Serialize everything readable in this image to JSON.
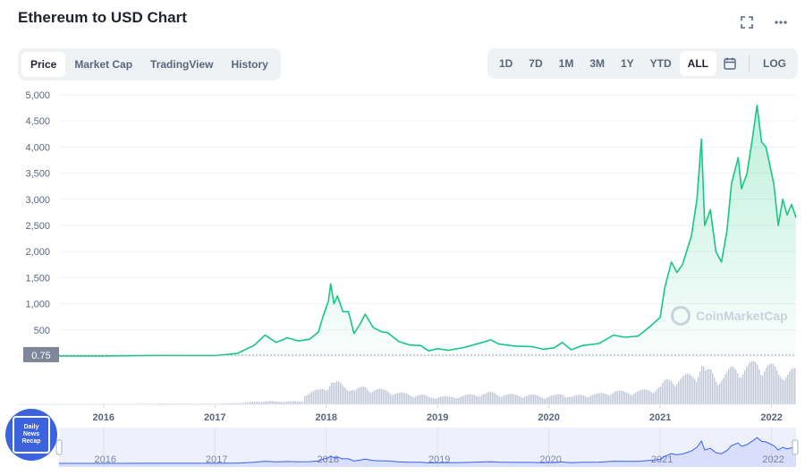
{
  "header": {
    "title": "Ethereum to USD Chart",
    "fullscreen_icon": "fullscreen-icon",
    "more_icon": "more-icon"
  },
  "tabs": [
    {
      "label": "Price",
      "active": true
    },
    {
      "label": "Market Cap",
      "active": false
    },
    {
      "label": "TradingView",
      "active": false
    },
    {
      "label": "History",
      "active": false
    }
  ],
  "ranges": [
    {
      "label": "1D",
      "active": false
    },
    {
      "label": "7D",
      "active": false
    },
    {
      "label": "1M",
      "active": false
    },
    {
      "label": "3M",
      "active": false
    },
    {
      "label": "1Y",
      "active": false
    },
    {
      "label": "YTD",
      "active": false
    },
    {
      "label": "ALL",
      "active": true
    }
  ],
  "calendar_icon": "calendar-icon",
  "log_label": "LOG",
  "watermark": "CoinMarketCap",
  "badge": {
    "lines": [
      "Daily",
      "News",
      "Recap"
    ]
  },
  "colors": {
    "line": "#16c784",
    "area_top": "#16c784",
    "volume": "#c4c9d4",
    "navigator_line": "#3861fb",
    "navigator_bg": "#eef0fb",
    "current_label_bg": "#7d8799"
  },
  "chart_data": {
    "type": "area",
    "title": "Ethereum to USD Chart",
    "ylim": [
      0,
      5000
    ],
    "y_ticks": [
      "5,000",
      "4,500",
      "4,000",
      "3,500",
      "3,000",
      "2,500",
      "2,000",
      "1,500",
      "1,000",
      "500"
    ],
    "x_ticks": [
      "2016",
      "2017",
      "2018",
      "2019",
      "2020",
      "2021",
      "2022"
    ],
    "current_value_label": "0.75",
    "grid": true,
    "series": [
      {
        "name": "Price",
        "points": [
          [
            2015.6,
            1
          ],
          [
            2016.0,
            1
          ],
          [
            2016.5,
            12
          ],
          [
            2017.0,
            9
          ],
          [
            2017.2,
            50
          ],
          [
            2017.35,
            200
          ],
          [
            2017.45,
            400
          ],
          [
            2017.55,
            260
          ],
          [
            2017.65,
            350
          ],
          [
            2017.75,
            290
          ],
          [
            2017.85,
            320
          ],
          [
            2017.93,
            460
          ],
          [
            2017.97,
            750
          ],
          [
            2018.02,
            1050
          ],
          [
            2018.04,
            1380
          ],
          [
            2018.07,
            1000
          ],
          [
            2018.1,
            1150
          ],
          [
            2018.15,
            850
          ],
          [
            2018.2,
            850
          ],
          [
            2018.25,
            430
          ],
          [
            2018.3,
            600
          ],
          [
            2018.35,
            800
          ],
          [
            2018.42,
            550
          ],
          [
            2018.5,
            460
          ],
          [
            2018.55,
            450
          ],
          [
            2018.65,
            280
          ],
          [
            2018.75,
            210
          ],
          [
            2018.85,
            200
          ],
          [
            2018.92,
            100
          ],
          [
            2019.0,
            140
          ],
          [
            2019.1,
            110
          ],
          [
            2019.25,
            170
          ],
          [
            2019.4,
            260
          ],
          [
            2019.48,
            310
          ],
          [
            2019.55,
            230
          ],
          [
            2019.7,
            190
          ],
          [
            2019.85,
            180
          ],
          [
            2019.95,
            130
          ],
          [
            2020.05,
            160
          ],
          [
            2020.12,
            260
          ],
          [
            2020.2,
            120
          ],
          [
            2020.3,
            200
          ],
          [
            2020.45,
            240
          ],
          [
            2020.58,
            400
          ],
          [
            2020.68,
            360
          ],
          [
            2020.8,
            380
          ],
          [
            2020.9,
            550
          ],
          [
            2021.0,
            740
          ],
          [
            2021.04,
            1300
          ],
          [
            2021.1,
            1800
          ],
          [
            2021.15,
            1600
          ],
          [
            2021.2,
            1750
          ],
          [
            2021.28,
            2300
          ],
          [
            2021.33,
            3000
          ],
          [
            2021.37,
            4150
          ],
          [
            2021.4,
            2500
          ],
          [
            2021.45,
            2800
          ],
          [
            2021.5,
            2000
          ],
          [
            2021.55,
            1800
          ],
          [
            2021.6,
            2400
          ],
          [
            2021.64,
            3300
          ],
          [
            2021.7,
            3800
          ],
          [
            2021.73,
            3200
          ],
          [
            2021.78,
            3500
          ],
          [
            2021.83,
            4200
          ],
          [
            2021.87,
            4800
          ],
          [
            2021.91,
            4100
          ],
          [
            2021.95,
            4000
          ],
          [
            2021.98,
            3700
          ],
          [
            2022.02,
            3300
          ],
          [
            2022.06,
            2500
          ],
          [
            2022.1,
            3000
          ],
          [
            2022.14,
            2700
          ],
          [
            2022.18,
            2900
          ],
          [
            2022.22,
            2650
          ]
        ]
      }
    ],
    "volume": {
      "name": "Volume"
    },
    "navigator": {
      "x_ticks": [
        "2016",
        "2017",
        "2018",
        "2019",
        "2020",
        "2021",
        "2022"
      ]
    }
  }
}
